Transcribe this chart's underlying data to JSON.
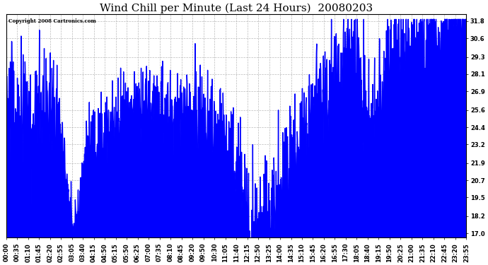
{
  "title": "Wind Chill per Minute (Last 24 Hours)  20080203",
  "copyright_text": "Copyright 2008 Cartronics.com",
  "line_color": "#0000ff",
  "bg_color": "#ffffff",
  "plot_bg_color": "#ffffff",
  "grid_color": "#aaaaaa",
  "yticks": [
    17.0,
    18.2,
    19.5,
    20.7,
    21.9,
    23.2,
    24.4,
    25.6,
    26.9,
    28.1,
    29.3,
    30.6,
    31.8
  ],
  "ylim": [
    16.7,
    32.3
  ],
  "title_fontsize": 11,
  "tick_fontsize": 6.0,
  "x_tick_labels": [
    "00:00",
    "00:35",
    "01:10",
    "01:45",
    "02:20",
    "02:55",
    "03:05",
    "03:40",
    "04:15",
    "04:50",
    "05:15",
    "05:50",
    "06:25",
    "07:00",
    "07:35",
    "08:10",
    "08:45",
    "09:20",
    "09:50",
    "10:30",
    "11:05",
    "11:40",
    "12:15",
    "12:50",
    "13:25",
    "14:00",
    "14:35",
    "15:10",
    "15:45",
    "16:20",
    "16:55",
    "17:30",
    "18:05",
    "18:40",
    "19:15",
    "19:50",
    "20:25",
    "21:00",
    "21:35",
    "22:10",
    "22:45",
    "23:20",
    "23:55"
  ]
}
